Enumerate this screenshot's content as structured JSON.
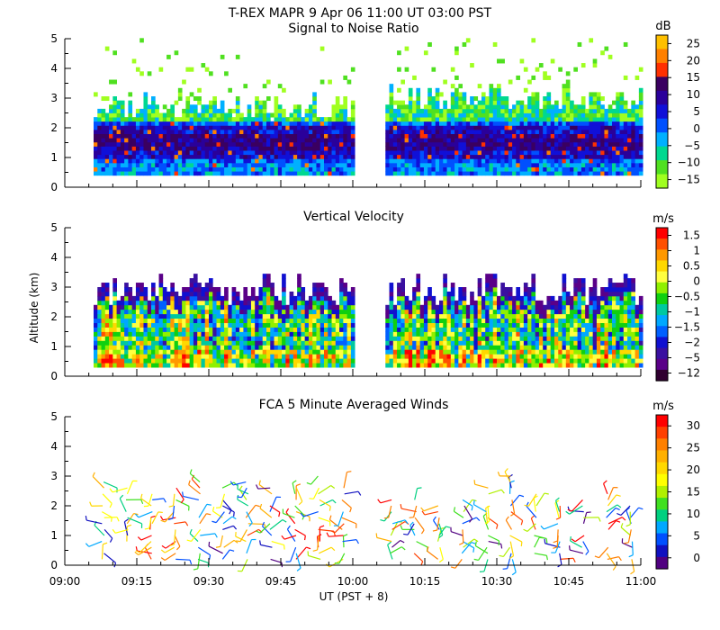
{
  "page": {
    "title": "T-REX  MAPR  9 Apr 06  11:00 UT  03:00  PST",
    "ylabel": "Altitude (km)",
    "xlabel": "UT  (PST + 8)",
    "x_ticks": [
      "09:00",
      "09:15",
      "09:30",
      "09:45",
      "10:00",
      "10:15",
      "10:30",
      "10:45",
      "11:00"
    ]
  },
  "chart_data": [
    {
      "type": "heatmap",
      "title": "Signal to Noise Ratio",
      "xlabel": "UT  (PST + 8)",
      "ylabel": "Altitude (km)",
      "xlim": [
        "09:00",
        "11:00"
      ],
      "ylim": [
        0,
        5
      ],
      "y_ticks": [
        "0",
        "1",
        "2",
        "3",
        "4",
        "5"
      ],
      "colorbar_unit": "dB",
      "colorbar_labels": [
        "25",
        "20",
        "15",
        "10",
        "5",
        "0",
        "−5",
        "−10",
        "−15"
      ],
      "colors": [
        "#ffc000",
        "#ff8000",
        "#ff3000",
        "#3a0060",
        "#2a009a",
        "#1010d8",
        "#0050ff",
        "#00b0ff",
        "#00d890",
        "#50e020",
        "#a0ff20"
      ],
      "data_gaps": [
        [
          "09:00",
          "09:06"
        ],
        [
          "10:00",
          "10:06"
        ]
      ],
      "notes": "Strongest returns (5 to 25 dB) concentrated between 1 and 2 km; weak echoes extend to 4-5 km"
    },
    {
      "type": "heatmap",
      "title": "Vertical Velocity",
      "xlabel": "UT  (PST + 8)",
      "ylabel": "Altitude (km)",
      "xlim": [
        "09:00",
        "11:00"
      ],
      "ylim": [
        0,
        5
      ],
      "y_ticks": [
        "0",
        "1",
        "2",
        "3",
        "4",
        "5"
      ],
      "colorbar_unit": "m/s",
      "colorbar_labels": [
        "1.5",
        "1",
        "0.5",
        "0",
        "−0.5",
        "−1",
        "−1.5",
        "−2",
        "−5",
        "−12"
      ],
      "colors": [
        "#ff0000",
        "#ff5000",
        "#ff9800",
        "#ffd800",
        "#ffff40",
        "#90f000",
        "#10d010",
        "#00c8a0",
        "#00a8ff",
        "#0060ff",
        "#1010d0",
        "#3a10a0",
        "#5a0088",
        "#300030"
      ],
      "data_gaps": [
        [
          "09:00",
          "09:06"
        ],
        [
          "10:00",
          "10:06"
        ]
      ],
      "notes": "Mixed updrafts and downdrafts 0.3-3 km; mostly 0 to 1.5 m/s, strong downdrafts near top"
    },
    {
      "type": "scatter",
      "title": "FCA 5 Minute Averaged Winds",
      "xlabel": "UT  (PST + 8)",
      "ylabel": "Altitude (km)",
      "xlim": [
        "09:00",
        "11:00"
      ],
      "ylim": [
        0,
        5
      ],
      "y_ticks": [
        "0",
        "1",
        "2",
        "3",
        "4",
        "5"
      ],
      "colorbar_unit": "m/s",
      "colorbar_labels": [
        "30",
        "25",
        "20",
        "15",
        "10",
        "5",
        "0"
      ],
      "colors": [
        "#ff0000",
        "#ff4000",
        "#ff8000",
        "#ffb000",
        "#ffd800",
        "#ffff00",
        "#b0f000",
        "#40e020",
        "#00d080",
        "#00a8ff",
        "#0050ff",
        "#1010c0",
        "#500080"
      ],
      "times_min": [
        8,
        13,
        18,
        23,
        28,
        33,
        38,
        43,
        48,
        53,
        58,
        68,
        73,
        78,
        83,
        88,
        93,
        98,
        103,
        108,
        113,
        118
      ],
      "notes": "Wind barbs every 5 min, 0.2-3.2 km; speeds mostly 5-20 m/s, up to ~30 m/s near 2 km around 10:20"
    }
  ]
}
